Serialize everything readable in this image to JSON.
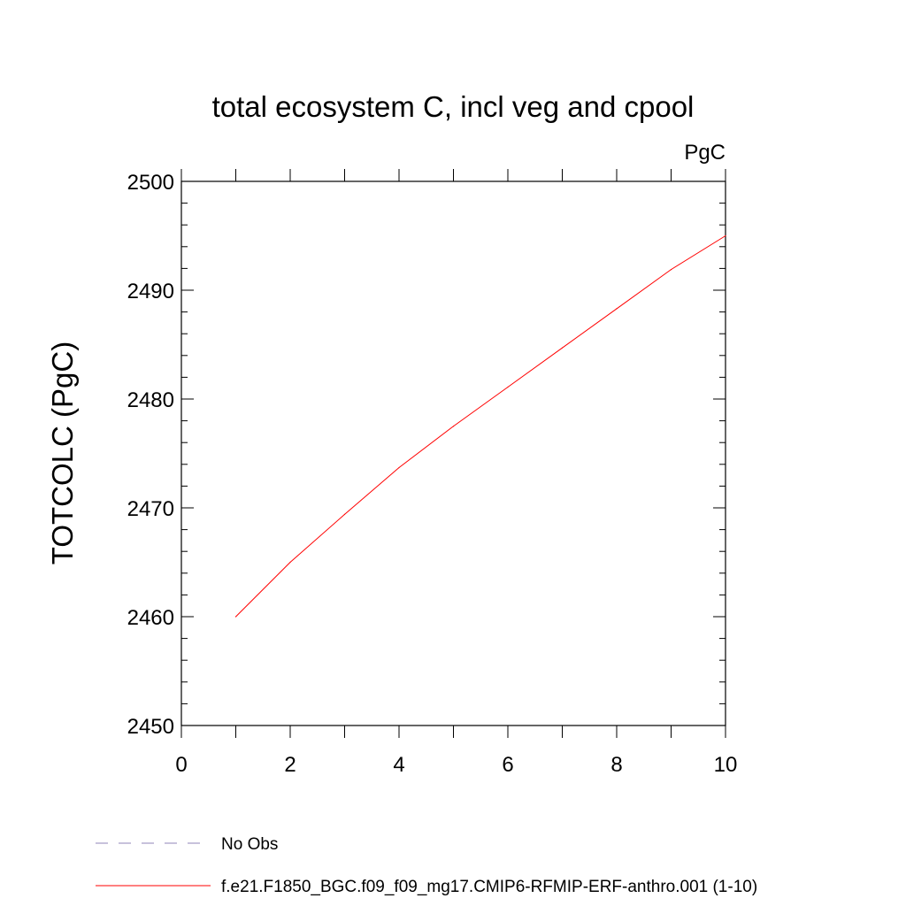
{
  "chart_data": {
    "type": "line",
    "title": "total ecosystem C, incl veg and cpool",
    "units": "PgC",
    "xlabel": "",
    "ylabel": "TOTCOLC  (PgC)",
    "xlim": [
      0,
      10
    ],
    "ylim": [
      2450,
      2500
    ],
    "x_ticks": [
      0,
      2,
      4,
      6,
      8,
      10
    ],
    "y_ticks": [
      2450,
      2460,
      2470,
      2480,
      2490,
      2500
    ],
    "grid": false,
    "legend_position": "bottom-left",
    "series": [
      {
        "name": "f.e21.F1850_BGC.f09_f09_mg17.CMIP6-RFMIP-ERF-anthro.001 (1-10)",
        "color": "#ff0000",
        "style": "solid",
        "x": [
          1,
          2,
          3,
          4,
          5,
          6,
          7,
          8,
          9,
          10
        ],
        "y": [
          2460.0,
          2465.0,
          2469.4,
          2473.7,
          2477.5,
          2481.1,
          2484.7,
          2488.3,
          2491.9,
          2495.0
        ]
      },
      {
        "name": "No Obs",
        "color": "#8f86b8",
        "style": "dashed",
        "x": [],
        "y": []
      }
    ]
  }
}
